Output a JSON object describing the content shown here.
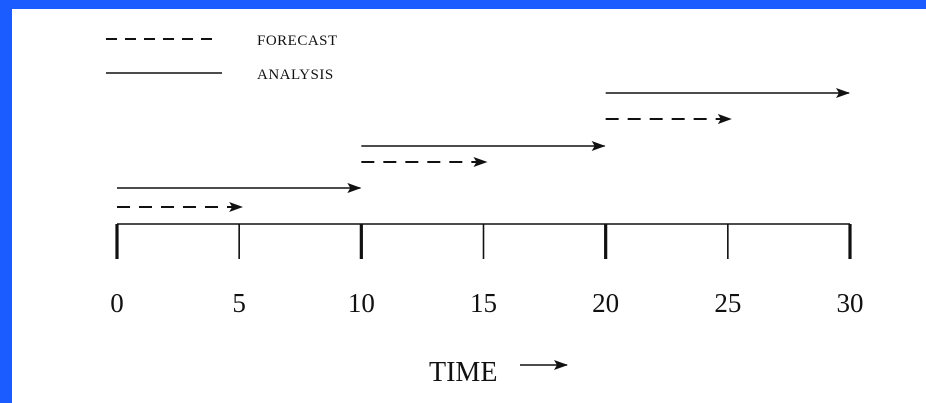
{
  "legend": {
    "forecast_label": "FORECAST",
    "analysis_label": "ANALYSIS"
  },
  "axis": {
    "label": "TIME",
    "ticks": [
      "0",
      "5",
      "10",
      "15",
      "20",
      "25",
      "30"
    ],
    "min": 0,
    "max": 30
  },
  "analysis_arrows": [
    {
      "start": 0,
      "end": 10
    },
    {
      "start": 10,
      "end": 20
    },
    {
      "start": 20,
      "end": 30
    }
  ],
  "forecast_arrows": [
    {
      "start": 0,
      "end": 5
    },
    {
      "start": 10,
      "end": 15
    },
    {
      "start": 20,
      "end": 25
    }
  ],
  "colors": {
    "border": "#1a5cff",
    "background": "#ffffff",
    "ink": "#111111"
  }
}
